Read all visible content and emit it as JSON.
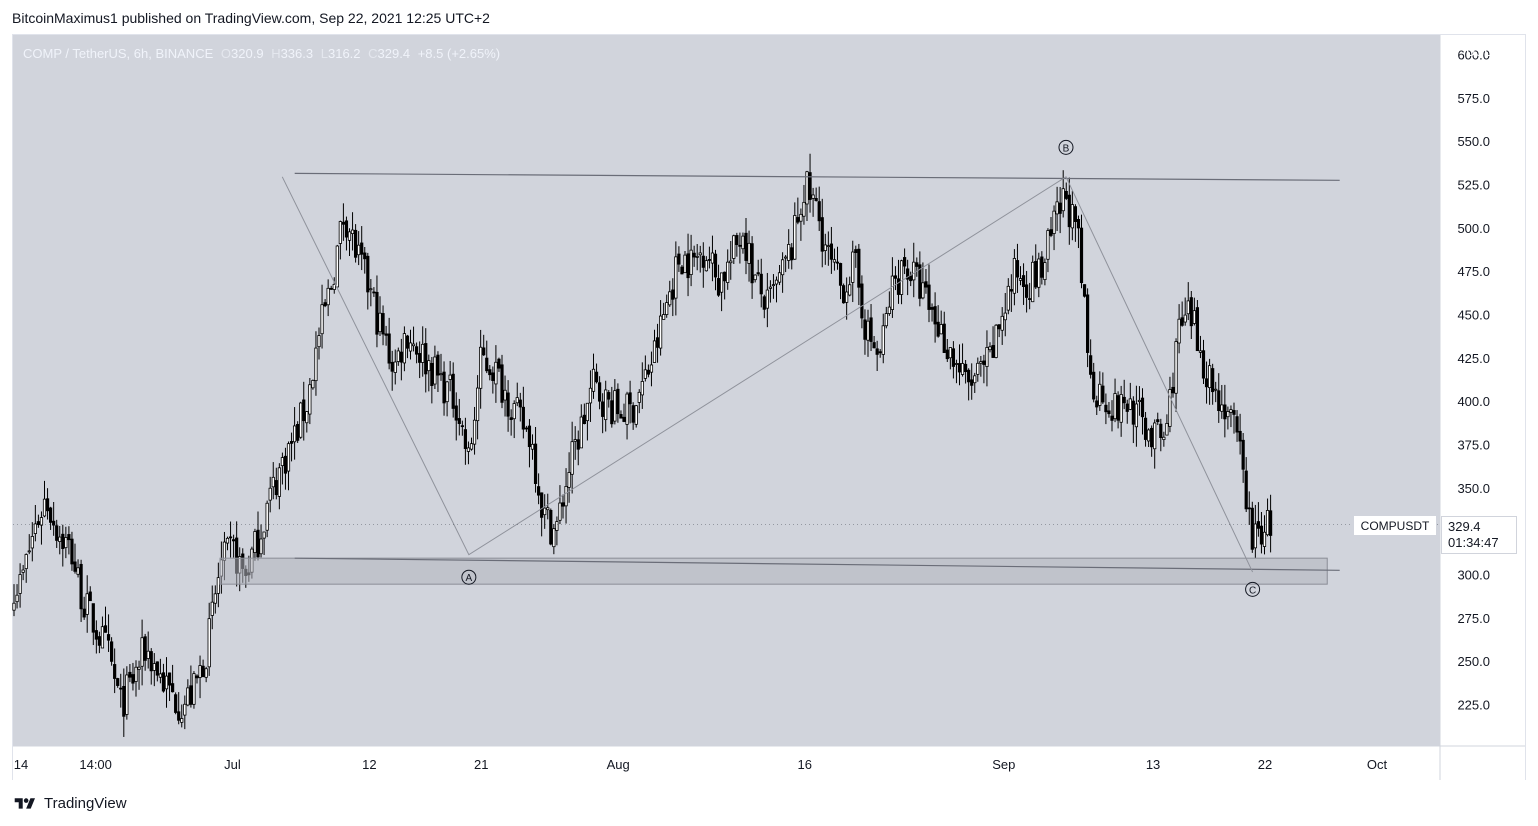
{
  "header": {
    "published_line": "BitcoinMaximus1 published on TradingView.com, Sep 22, 2021 12:25 UTC+2"
  },
  "legend": {
    "symbol": "COMP / TetherUS, 6h, BINANCE",
    "open_label": "O",
    "open": "320.9",
    "high_label": "H",
    "high": "336.3",
    "low_label": "L",
    "low": "316.2",
    "close_label": "C",
    "close": "329.4",
    "change": "+8.5 (+2.65%)"
  },
  "price_axis": {
    "unit": "USDT",
    "symbol_tag": "COMPUSDT",
    "last_price": "329.4",
    "countdown": "01:34:47"
  },
  "footer": {
    "brand": "TradingView"
  },
  "colors": {
    "background": "#d1d4dc",
    "candle": "#000000",
    "trendline": "#6a6d78",
    "wave_line": "#8f929b",
    "support_zone": "#b2b5be"
  },
  "chart_data": {
    "type": "candlestick",
    "symbol": "COMP / TetherUS",
    "interval": "6h",
    "exchange": "BINANCE",
    "ylim": [
      200,
      610
    ],
    "y_ticks": [
      225,
      250,
      275,
      300,
      325,
      350,
      375,
      400,
      425,
      450,
      475,
      500,
      525,
      550,
      575,
      600
    ],
    "y_tick_labels": [
      "225.0",
      "250.0",
      "275.0",
      "300.0",
      "",
      "350.0",
      "375.0",
      "400.0",
      "425.0",
      "450.0",
      "475.0",
      "500.0",
      "525.0",
      "550.0",
      "575.0",
      "600.0"
    ],
    "x_ticks": [
      {
        "label": "14",
        "date": "2021-06-14"
      },
      {
        "label": "14:00",
        "date": "2021-06-20"
      },
      {
        "label": "Jul",
        "date": "2021-07-01"
      },
      {
        "label": "12",
        "date": "2021-07-12"
      },
      {
        "label": "21",
        "date": "2021-07-21"
      },
      {
        "label": "Aug",
        "date": "2021-08-01"
      },
      {
        "label": "16",
        "date": "2021-08-16"
      },
      {
        "label": "Sep",
        "date": "2021-09-01"
      },
      {
        "label": "13",
        "date": "2021-09-13"
      },
      {
        "label": "22",
        "date": "2021-09-22"
      },
      {
        "label": "Oct",
        "date": "2021-10-01"
      }
    ],
    "grid": false,
    "close_path": [
      [
        "2021-06-14",
        295
      ],
      [
        "2021-06-15",
        325
      ],
      [
        "2021-06-16",
        345
      ],
      [
        "2021-06-17",
        325
      ],
      [
        "2021-06-18",
        315
      ],
      [
        "2021-06-19",
        285
      ],
      [
        "2021-06-20",
        270
      ],
      [
        "2021-06-21",
        255
      ],
      [
        "2021-06-22",
        225
      ],
      [
        "2021-06-23",
        240
      ],
      [
        "2021-06-24",
        258
      ],
      [
        "2021-06-25",
        245
      ],
      [
        "2021-06-26",
        232
      ],
      [
        "2021-06-27",
        225
      ],
      [
        "2021-06-28",
        235
      ],
      [
        "2021-06-29",
        260
      ],
      [
        "2021-06-30",
        305
      ],
      [
        "2021-07-01",
        315
      ],
      [
        "2021-07-02",
        300
      ],
      [
        "2021-07-03",
        320
      ],
      [
        "2021-07-04",
        345
      ],
      [
        "2021-07-05",
        365
      ],
      [
        "2021-07-06",
        380
      ],
      [
        "2021-07-07",
        400
      ],
      [
        "2021-07-08",
        440
      ],
      [
        "2021-07-09",
        470
      ],
      [
        "2021-07-10",
        510
      ],
      [
        "2021-07-11",
        485
      ],
      [
        "2021-07-12",
        465
      ],
      [
        "2021-07-13",
        440
      ],
      [
        "2021-07-14",
        420
      ],
      [
        "2021-07-15",
        440
      ],
      [
        "2021-07-16",
        430
      ],
      [
        "2021-07-17",
        420
      ],
      [
        "2021-07-18",
        410
      ],
      [
        "2021-07-19",
        400
      ],
      [
        "2021-07-20",
        365
      ],
      [
        "2021-07-21",
        425
      ],
      [
        "2021-07-22",
        420
      ],
      [
        "2021-07-23",
        405
      ],
      [
        "2021-07-24",
        390
      ],
      [
        "2021-07-25",
        380
      ],
      [
        "2021-07-26",
        335
      ],
      [
        "2021-07-27",
        325
      ],
      [
        "2021-07-28",
        360
      ],
      [
        "2021-07-29",
        385
      ],
      [
        "2021-07-30",
        410
      ],
      [
        "2021-07-31",
        400
      ],
      [
        "2021-08-01",
        395
      ],
      [
        "2021-08-02",
        395
      ],
      [
        "2021-08-03",
        410
      ],
      [
        "2021-08-04",
        430
      ],
      [
        "2021-08-05",
        460
      ],
      [
        "2021-08-06",
        485
      ],
      [
        "2021-08-07",
        480
      ],
      [
        "2021-08-08",
        490
      ],
      [
        "2021-08-09",
        470
      ],
      [
        "2021-08-10",
        480
      ],
      [
        "2021-08-11",
        500
      ],
      [
        "2021-08-12",
        470
      ],
      [
        "2021-08-13",
        455
      ],
      [
        "2021-08-14",
        470
      ],
      [
        "2021-08-15",
        490
      ],
      [
        "2021-08-16",
        525
      ],
      [
        "2021-08-17",
        510
      ],
      [
        "2021-08-18",
        480
      ],
      [
        "2021-08-19",
        465
      ],
      [
        "2021-08-20",
        480
      ],
      [
        "2021-08-21",
        440
      ],
      [
        "2021-08-22",
        425
      ],
      [
        "2021-08-23",
        465
      ],
      [
        "2021-08-24",
        480
      ],
      [
        "2021-08-25",
        470
      ],
      [
        "2021-08-26",
        455
      ],
      [
        "2021-08-27",
        440
      ],
      [
        "2021-08-28",
        425
      ],
      [
        "2021-08-29",
        410
      ],
      [
        "2021-08-30",
        415
      ],
      [
        "2021-08-31",
        425
      ],
      [
        "2021-09-01",
        455
      ],
      [
        "2021-09-02",
        475
      ],
      [
        "2021-09-03",
        470
      ],
      [
        "2021-09-04",
        475
      ],
      [
        "2021-09-05",
        500
      ],
      [
        "2021-09-06",
        520
      ],
      [
        "2021-09-07",
        490
      ],
      [
        "2021-09-08",
        410
      ],
      [
        "2021-09-09",
        405
      ],
      [
        "2021-09-10",
        395
      ],
      [
        "2021-09-11",
        400
      ],
      [
        "2021-09-12",
        390
      ],
      [
        "2021-09-13",
        380
      ],
      [
        "2021-09-14",
        380
      ],
      [
        "2021-09-15",
        440
      ],
      [
        "2021-09-16",
        450
      ],
      [
        "2021-09-17",
        425
      ],
      [
        "2021-09-18",
        405
      ],
      [
        "2021-09-19",
        395
      ],
      [
        "2021-09-20",
        370
      ],
      [
        "2021-09-21",
        320
      ],
      [
        "2021-09-22",
        329.4
      ]
    ],
    "annotations": [
      {
        "type": "line",
        "name": "resistance-trendline",
        "from": [
          "2021-07-06",
          532
        ],
        "to": [
          "2021-09-28",
          528
        ]
      },
      {
        "type": "line",
        "name": "support-trendline",
        "from": [
          "2021-07-06",
          310
        ],
        "to": [
          "2021-09-28",
          303
        ]
      },
      {
        "type": "rect",
        "name": "support-zone",
        "from": [
          "2021-06-30",
          310
        ],
        "to": [
          "2021-09-27",
          295
        ]
      },
      {
        "type": "polyline",
        "name": "abc-correction",
        "points": [
          [
            "2021-07-05",
            530
          ],
          [
            "2021-07-20",
            312
          ],
          [
            "2021-09-06",
            530
          ],
          [
            "2021-09-21",
            302
          ]
        ]
      },
      {
        "type": "label",
        "text": "A",
        "at": [
          "2021-07-20",
          299
        ]
      },
      {
        "type": "label",
        "text": "B",
        "at": [
          "2021-09-06",
          547
        ]
      },
      {
        "type": "label",
        "text": "C",
        "at": [
          "2021-09-21",
          292
        ]
      }
    ]
  }
}
